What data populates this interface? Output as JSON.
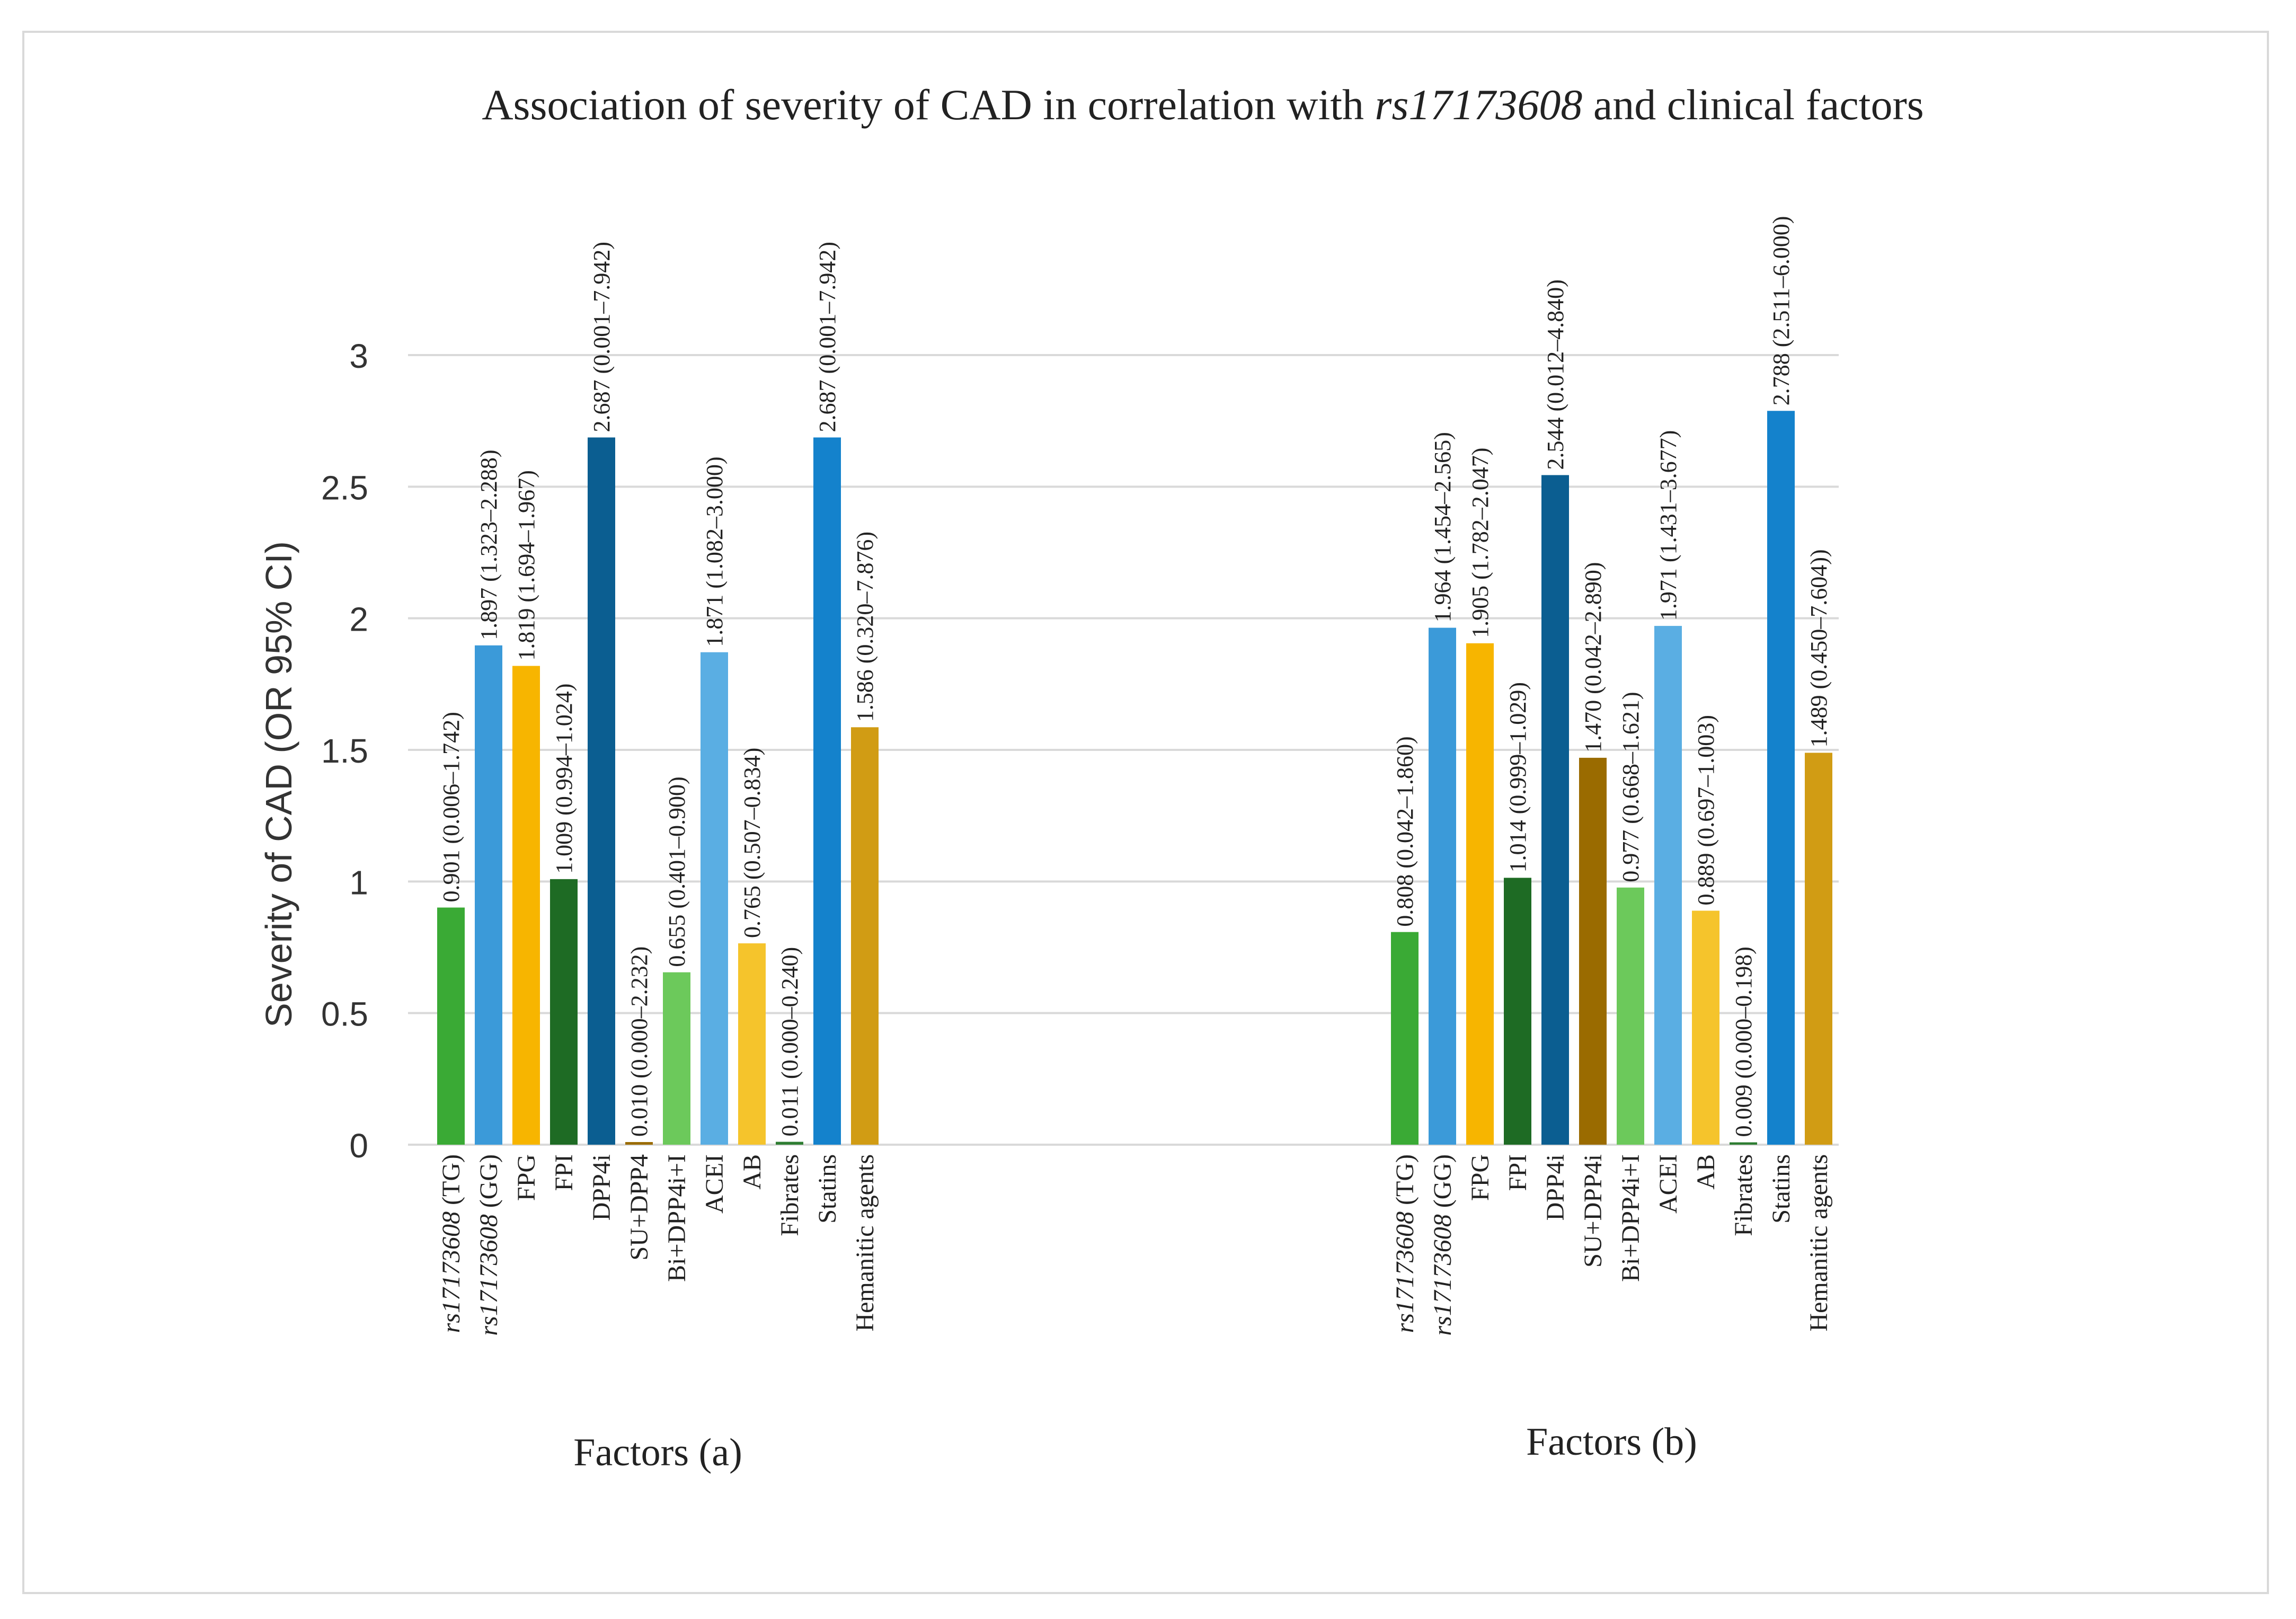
{
  "chart_data": {
    "type": "bar",
    "title_prefix": "Association of severity of CAD in correlation with ",
    "title_italic": "rs17173608",
    "title_suffix": " and clinical factors",
    "ylabel": "Severity of CAD    (OR  95% CI)",
    "ylim": [
      0,
      3
    ],
    "yticks": [
      "0",
      "0.5",
      "1",
      "1.5",
      "2",
      "2.5",
      "3"
    ],
    "grid": true,
    "panels": [
      {
        "xlabel": "Factors (a)",
        "bars": [
          {
            "label": "rs17173608 (TG)",
            "italic": "rs17173608",
            "rest": " (TG)",
            "value": 0.901,
            "annotation": "0.901 (0.006–1.742)",
            "color": "#3aaa35"
          },
          {
            "label": "rs17173608 (GG)",
            "italic": "rs17173608",
            "rest": " (GG)",
            "value": 1.897,
            "annotation": "1.897 (1.323–2.288)",
            "color": "#3b9ad9"
          },
          {
            "label": "FPG",
            "italic": "",
            "rest": "FPG",
            "value": 1.819,
            "annotation": "1.819 (1.694–1.967)",
            "color": "#f7b500"
          },
          {
            "label": "FPI",
            "italic": "",
            "rest": "FPI",
            "value": 1.009,
            "annotation": "1.009 (0.994–1.024)",
            "color": "#1e6b24"
          },
          {
            "label": "DPP4i",
            "italic": "",
            "rest": "DPP4i",
            "value": 2.687,
            "annotation": "2.687 (0.001–7.942)",
            "color": "#0b5e91"
          },
          {
            "label": "SU+DPP4",
            "italic": "",
            "rest": "SU+DPP4",
            "value": 0.01,
            "annotation": "0.010 (0.000–2.232)",
            "color": "#9a6b00"
          },
          {
            "label": "Bi+DPP4i+I",
            "italic": "",
            "rest": "Bi+DPP4i+I",
            "value": 0.655,
            "annotation": "0.655 (0.401–0.900)",
            "color": "#6cc95b"
          },
          {
            "label": "ACEI",
            "italic": "",
            "rest": "ACEI",
            "value": 1.871,
            "annotation": "1.871 (1.082–3.000)",
            "color": "#5aaee3"
          },
          {
            "label": "AB",
            "italic": "",
            "rest": "AB",
            "value": 0.765,
            "annotation": "0.765 (0.507–0.834)",
            "color": "#f5c42c"
          },
          {
            "label": "Fibrates",
            "italic": "",
            "rest": "Fibrates",
            "value": 0.011,
            "annotation": "0.011 (0.000–0.240)",
            "color": "#2e7d32"
          },
          {
            "label": "Statins",
            "italic": "",
            "rest": "Statins",
            "value": 2.687,
            "annotation": "2.687 (0.001–7.942)",
            "color": "#1482cc"
          },
          {
            "label": "Hemanitic agents",
            "italic": "",
            "rest": "Hemanitic agents",
            "value": 1.586,
            "annotation": "1.586 (0.320–7.876)",
            "color": "#d19c14"
          }
        ]
      },
      {
        "xlabel": "Factors (b)",
        "bars": [
          {
            "label": "rs17173608 (TG)",
            "italic": "rs17173608",
            "rest": " (TG)",
            "value": 0.808,
            "annotation": "0.808 (0.042–1.860)",
            "color": "#3aaa35"
          },
          {
            "label": "rs17173608 (GG)",
            "italic": "rs17173608",
            "rest": " (GG)",
            "value": 1.964,
            "annotation": "1.964 (1.454–2.565)",
            "color": "#3b9ad9"
          },
          {
            "label": "FPG",
            "italic": "",
            "rest": "FPG",
            "value": 1.905,
            "annotation": "1.905 (1.782–2.047)",
            "color": "#f7b500"
          },
          {
            "label": "FPI",
            "italic": "",
            "rest": "FPI",
            "value": 1.014,
            "annotation": "1.014 (0.999–1.029)",
            "color": "#1e6b24"
          },
          {
            "label": "DPP4i",
            "italic": "",
            "rest": "DPP4i",
            "value": 2.544,
            "annotation": "2.544 (0.012–4.840)",
            "color": "#0b5e91"
          },
          {
            "label": "SU+DPP4i",
            "italic": "",
            "rest": "SU+DPP4i",
            "value": 1.47,
            "annotation": "1.470 (0.042–2.890)",
            "color": "#9a6b00"
          },
          {
            "label": "Bi+DPP4i+I",
            "italic": "",
            "rest": "Bi+DPP4i+I",
            "value": 0.977,
            "annotation": "0.977 (0.668–1.621)",
            "color": "#6cc95b"
          },
          {
            "label": "ACEI",
            "italic": "",
            "rest": "ACEI",
            "value": 1.971,
            "annotation": "1.971 (1.431–3.677)",
            "color": "#5aaee3"
          },
          {
            "label": "AB",
            "italic": "",
            "rest": "AB",
            "value": 0.889,
            "annotation": "0.889 (0.697–1.003)",
            "color": "#f5c42c"
          },
          {
            "label": "Fibrates",
            "italic": "",
            "rest": "Fibrates",
            "value": 0.009,
            "annotation": "0.009 (0.000–0.198)",
            "color": "#2e7d32"
          },
          {
            "label": "Statins",
            "italic": "",
            "rest": "Statins",
            "value": 2.788,
            "annotation": "2.788 (2.511–6.000)",
            "color": "#1482cc"
          },
          {
            "label": "Hemanitic agents",
            "italic": "",
            "rest": "Hemanitic agents",
            "value": 1.489,
            "annotation": "1.489 (0.450–7.604))",
            "color": "#d19c14"
          }
        ]
      }
    ]
  }
}
